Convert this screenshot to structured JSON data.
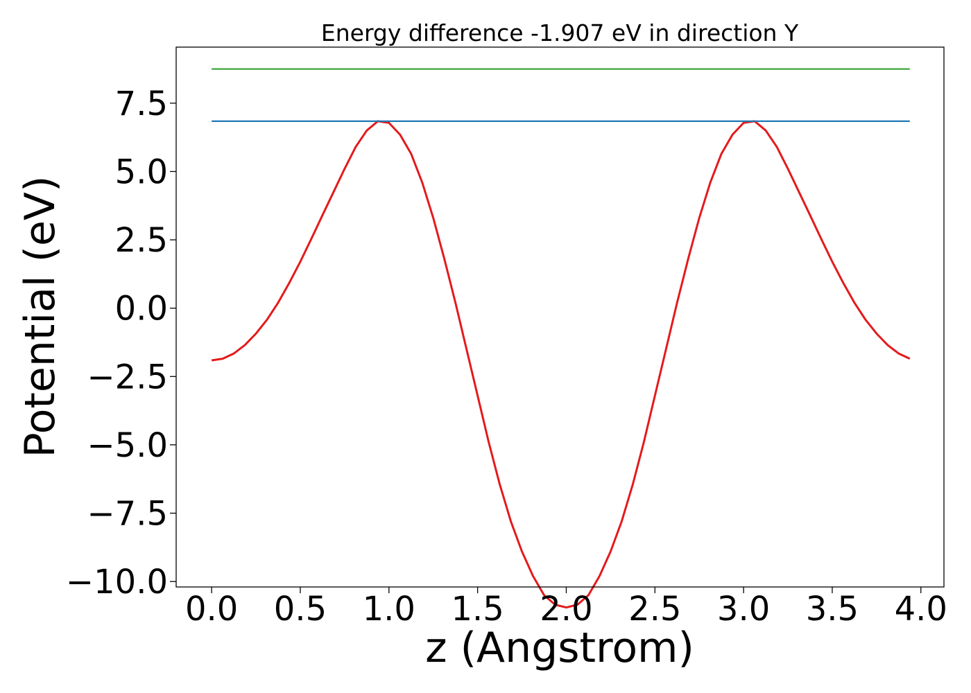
{
  "chart_data": {
    "type": "line",
    "title": "Energy difference -1.907 eV in direction Y",
    "xlabel": "z (Angstrom)",
    "ylabel": "Potential (eV)",
    "xlim": [
      -0.2,
      4.13
    ],
    "ylim": [
      -10.2,
      9.55
    ],
    "x_ticks": [
      0.0,
      0.5,
      1.0,
      1.5,
      2.0,
      2.5,
      3.0,
      3.5,
      4.0
    ],
    "x_tick_labels": [
      "0.0",
      "0.5",
      "1.0",
      "1.5",
      "2.0",
      "2.5",
      "3.0",
      "3.5",
      "4.0"
    ],
    "y_ticks": [
      7.5,
      5.0,
      2.5,
      0.0,
      -2.5,
      -5.0,
      -7.5,
      -10.0
    ],
    "y_tick_labels": [
      "7.5",
      "5.0",
      "2.5",
      "0.0",
      "−2.5",
      "−5.0",
      "−7.5",
      "−10.0"
    ],
    "grid": false,
    "legend": null,
    "series": [
      {
        "color": "#e31a1c",
        "kind": "line",
        "x": [
          0.0,
          0.0625,
          0.125,
          0.1875,
          0.25,
          0.3125,
          0.375,
          0.4375,
          0.5,
          0.5625,
          0.625,
          0.6875,
          0.75,
          0.8125,
          0.875,
          0.9375,
          1.0,
          1.0625,
          1.125,
          1.1875,
          1.25,
          1.3125,
          1.375,
          1.4375,
          1.5,
          1.5625,
          1.625,
          1.6875,
          1.75,
          1.8125,
          1.875,
          1.9375,
          2.0,
          2.0625,
          2.125,
          2.1875,
          2.25,
          2.3125,
          2.375,
          2.4375,
          2.5,
          2.5625,
          2.625,
          2.6875,
          2.75,
          2.8125,
          2.875,
          2.9375,
          3.0,
          3.0625,
          3.125,
          3.1875,
          3.25,
          3.3125,
          3.375,
          3.4375,
          3.5,
          3.5625,
          3.625,
          3.6875,
          3.75,
          3.8125,
          3.875,
          3.9375
        ],
        "y": [
          -1.91,
          -1.85,
          -1.66,
          -1.35,
          -0.93,
          -0.42,
          0.2,
          0.92,
          1.7,
          2.54,
          3.4,
          4.25,
          5.1,
          5.9,
          6.5,
          6.84,
          6.78,
          6.35,
          5.65,
          4.6,
          3.3,
          1.8,
          0.2,
          -1.5,
          -3.2,
          -4.9,
          -6.45,
          -7.8,
          -8.9,
          -9.8,
          -10.5,
          -10.85,
          -10.95,
          -10.85,
          -10.5,
          -9.8,
          -8.9,
          -7.8,
          -6.45,
          -4.9,
          -3.2,
          -1.5,
          0.2,
          1.8,
          3.3,
          4.6,
          5.65,
          6.35,
          6.78,
          6.84,
          6.5,
          5.9,
          5.1,
          4.25,
          3.4,
          2.54,
          1.7,
          0.92,
          0.2,
          -0.42,
          -0.93,
          -1.35,
          -1.66,
          -1.85
        ]
      },
      {
        "color": "#1f78b4",
        "kind": "hline",
        "y": 6.84,
        "x_range": [
          0.0,
          3.9375
        ]
      },
      {
        "color": "#33a02c",
        "kind": "hline",
        "y": 8.75,
        "x_range": [
          0.0,
          3.9375
        ]
      }
    ]
  }
}
